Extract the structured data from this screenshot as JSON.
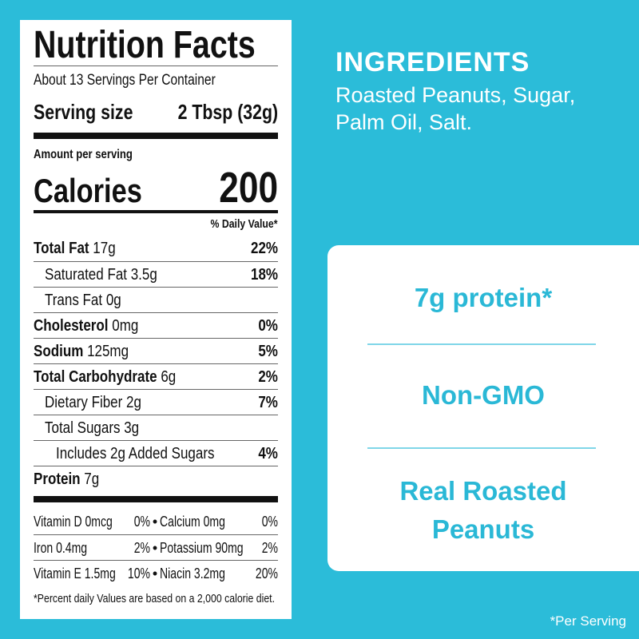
{
  "label": {
    "title": "Nutrition Facts",
    "servings": "About 13 Servings Per Container",
    "serving_size_label": "Serving size",
    "serving_size_value": "2 Tbsp (32g)",
    "amount_per_serving": "Amount per serving",
    "calories_label": "Calories",
    "calories_value": "200",
    "daily_value_header": "% Daily Value*",
    "nutrients": [
      {
        "name": "Total Fat",
        "amount": "17g",
        "dv": "22%",
        "bold": true,
        "indent": 0
      },
      {
        "name": "Saturated Fat 3.5g",
        "amount": "",
        "dv": "18%",
        "bold": false,
        "indent": 1
      },
      {
        "name": "Trans Fat 0g",
        "amount": "",
        "dv": "",
        "bold": false,
        "indent": 1
      },
      {
        "name": "Cholesterol",
        "amount": "0mg",
        "dv": "0%",
        "bold": true,
        "indent": 0
      },
      {
        "name": "Sodium",
        "amount": "125mg",
        "dv": "5%",
        "bold": true,
        "indent": 0
      },
      {
        "name": "Total Carbohydrate",
        "amount": "6g",
        "dv": "2%",
        "bold": true,
        "indent": 0
      },
      {
        "name": "Dietary Fiber 2g",
        "amount": "",
        "dv": "7%",
        "bold": false,
        "indent": 1
      },
      {
        "name": "Total Sugars 3g",
        "amount": "",
        "dv": "",
        "bold": false,
        "indent": 1
      },
      {
        "name": "Includes 2g Added Sugars",
        "amount": "",
        "dv": "4%",
        "bold": false,
        "indent": 2
      },
      {
        "name": "Protein",
        "amount": "7g",
        "dv": "",
        "bold": true,
        "indent": 0
      }
    ],
    "vitamins": [
      {
        "a": "Vitamin D 0mcg",
        "a_dv": "0%",
        "b": "Calcium 0mg",
        "b_dv": "0%"
      },
      {
        "a": "Iron 0.4mg",
        "a_dv": "2%",
        "b": "Potassium 90mg",
        "b_dv": "2%"
      },
      {
        "a": "Vitamin E 1.5mg",
        "a_dv": "10%",
        "b": "Niacin 3.2mg",
        "b_dv": "20%"
      }
    ],
    "footnote": "*Percent daily Values are based on a 2,000 calorie diet."
  },
  "ingredients": {
    "heading": "INGREDIENTS",
    "line1": "Roasted Peanuts, Sugar,",
    "line2": "Palm Oil, Salt."
  },
  "claims": {
    "protein": "7g protein*",
    "non_gmo": "Non-GMO",
    "real_line1": "Real Roasted",
    "real_line2": "Peanuts"
  },
  "footer_note": "*Per Serving",
  "colors": {
    "background": "#2bbcd9",
    "accent_text": "#2ab8d6"
  }
}
